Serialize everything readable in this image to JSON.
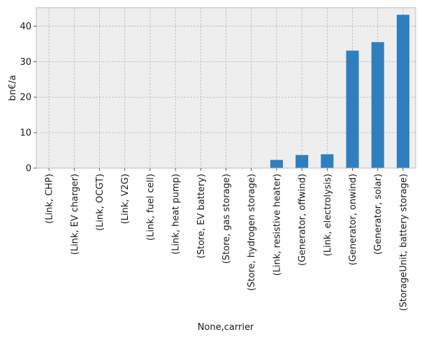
{
  "chart_data": {
    "type": "bar",
    "title": "",
    "xlabel": "None,carrier",
    "ylabel": "bn€/a",
    "ylim": [
      0,
      45.2
    ],
    "yticks": [
      0,
      10,
      20,
      30,
      40
    ],
    "grid": true,
    "categories": [
      "(Link, CHP)",
      "(Link, EV charger)",
      "(Link, OCGT)",
      "(Link, V2G)",
      "(Link, fuel cell)",
      "(Link, heat pump)",
      "(Store, EV battery)",
      "(Store, gas storage)",
      "(Store, hydrogen storage)",
      "(Link, resistive heater)",
      "(Generator, offwind)",
      "(Link, electrolysis)",
      "(Generator, onwind)",
      "(Generator, solar)",
      "(StorageUnit, battery storage)"
    ],
    "values": [
      0,
      0,
      0,
      0,
      0,
      0,
      0,
      0,
      0,
      2.3,
      3.7,
      3.9,
      33.1,
      35.5,
      43.2
    ],
    "colors": {
      "bar": "#2f7fbf",
      "plot_background": "#eeeeee",
      "grid": "#b2b2b2",
      "frame": "#bcbcbc"
    }
  }
}
